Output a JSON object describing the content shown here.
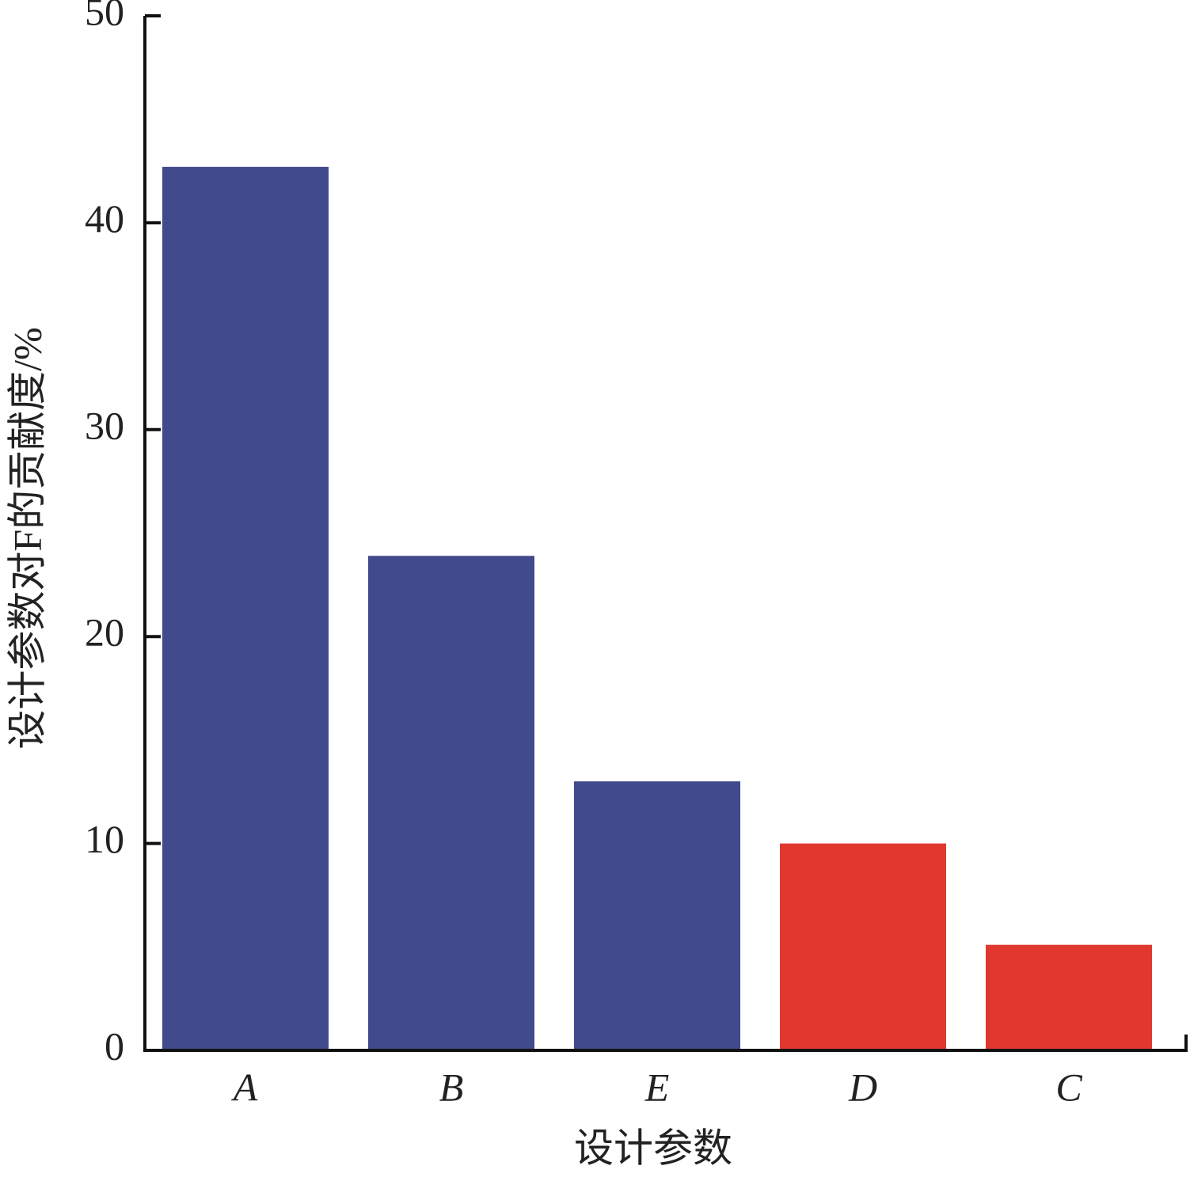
{
  "chart_data": {
    "type": "bar",
    "categories": [
      "A",
      "B",
      "E",
      "D",
      "C"
    ],
    "values": [
      42.7,
      23.9,
      13.0,
      10.0,
      5.1
    ],
    "colors": [
      "#414a8c",
      "#414a8c",
      "#414a8c",
      "#e0382e",
      "#e0382e"
    ],
    "x_label": "设计参数",
    "y_label": "设计参数对F的贡献度/%",
    "ylim": [
      0,
      50
    ],
    "yticks": [
      0,
      10,
      20,
      30,
      40,
      50
    ],
    "grid": false
  }
}
